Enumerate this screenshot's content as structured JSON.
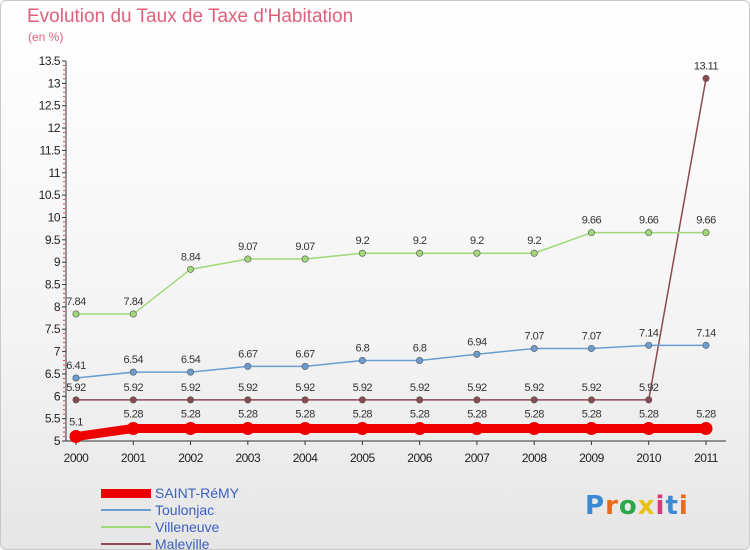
{
  "header": {
    "title": "Evolution du Taux de Taxe d'Habitation",
    "subtitle": "(en %)"
  },
  "logo": {
    "text": "Proxiti",
    "colors": [
      "#3a8ad6",
      "#e86a1a",
      "#2aa84a",
      "#e8c21a",
      "#d63a7a",
      "#3a8ad6",
      "#e86a1a"
    ]
  },
  "chart_data": {
    "type": "line",
    "x": [
      "2000",
      "2001",
      "2002",
      "2003",
      "2004",
      "2005",
      "2006",
      "2007",
      "2008",
      "2009",
      "2010",
      "2011"
    ],
    "ylim": [
      5,
      13.5
    ],
    "yticks": [
      "5",
      "5.5",
      "6",
      "6.5",
      "7",
      "7.5",
      "8",
      "8.5",
      "9",
      "9.5",
      "10",
      "10.5",
      "11",
      "11.5",
      "12",
      "12.5",
      "13",
      "13.5"
    ],
    "grid": false,
    "legend_position": "bottom-left",
    "series": [
      {
        "name": "SAINT-RéMY",
        "color": "#ee0000",
        "values": [
          5.1,
          5.28,
          5.28,
          5.28,
          5.28,
          5.28,
          5.28,
          5.28,
          5.28,
          5.28,
          5.28,
          5.28
        ],
        "labels": [
          "5.1",
          "5.28",
          "5.28",
          "5.28",
          "5.28",
          "5.28",
          "5.28",
          "5.28",
          "5.28",
          "5.28",
          "5.28",
          "5.28"
        ]
      },
      {
        "name": "Toulonjac",
        "color": "#6a9ed0",
        "values": [
          6.41,
          6.54,
          6.54,
          6.67,
          6.67,
          6.8,
          6.8,
          6.94,
          7.07,
          7.07,
          7.14,
          7.14
        ],
        "labels": [
          "6.41",
          "6.54",
          "6.54",
          "6.67",
          "6.67",
          "6.8",
          "6.8",
          "6.94",
          "7.07",
          "7.07",
          "7.14",
          "7.14"
        ]
      },
      {
        "name": "Villeneuve",
        "color": "#a0d878",
        "values": [
          7.84,
          7.84,
          8.84,
          9.07,
          9.07,
          9.2,
          9.2,
          9.2,
          9.2,
          9.66,
          9.66,
          9.66
        ],
        "labels": [
          "7.84",
          "7.84",
          "8.84",
          "9.07",
          "9.07",
          "9.2",
          "9.2",
          "9.2",
          "9.2",
          "9.66",
          "9.66",
          "9.66"
        ]
      },
      {
        "name": "Maleville",
        "color": "#8a4a52",
        "values": [
          5.92,
          5.92,
          5.92,
          5.92,
          5.92,
          5.92,
          5.92,
          5.92,
          5.92,
          5.92,
          5.92,
          13.11
        ],
        "labels": [
          "5.92",
          "5.92",
          "5.92",
          "5.92",
          "5.92",
          "5.92",
          "5.92",
          "5.92",
          "5.92",
          "5.92",
          "5.92",
          "13.11"
        ]
      }
    ]
  }
}
